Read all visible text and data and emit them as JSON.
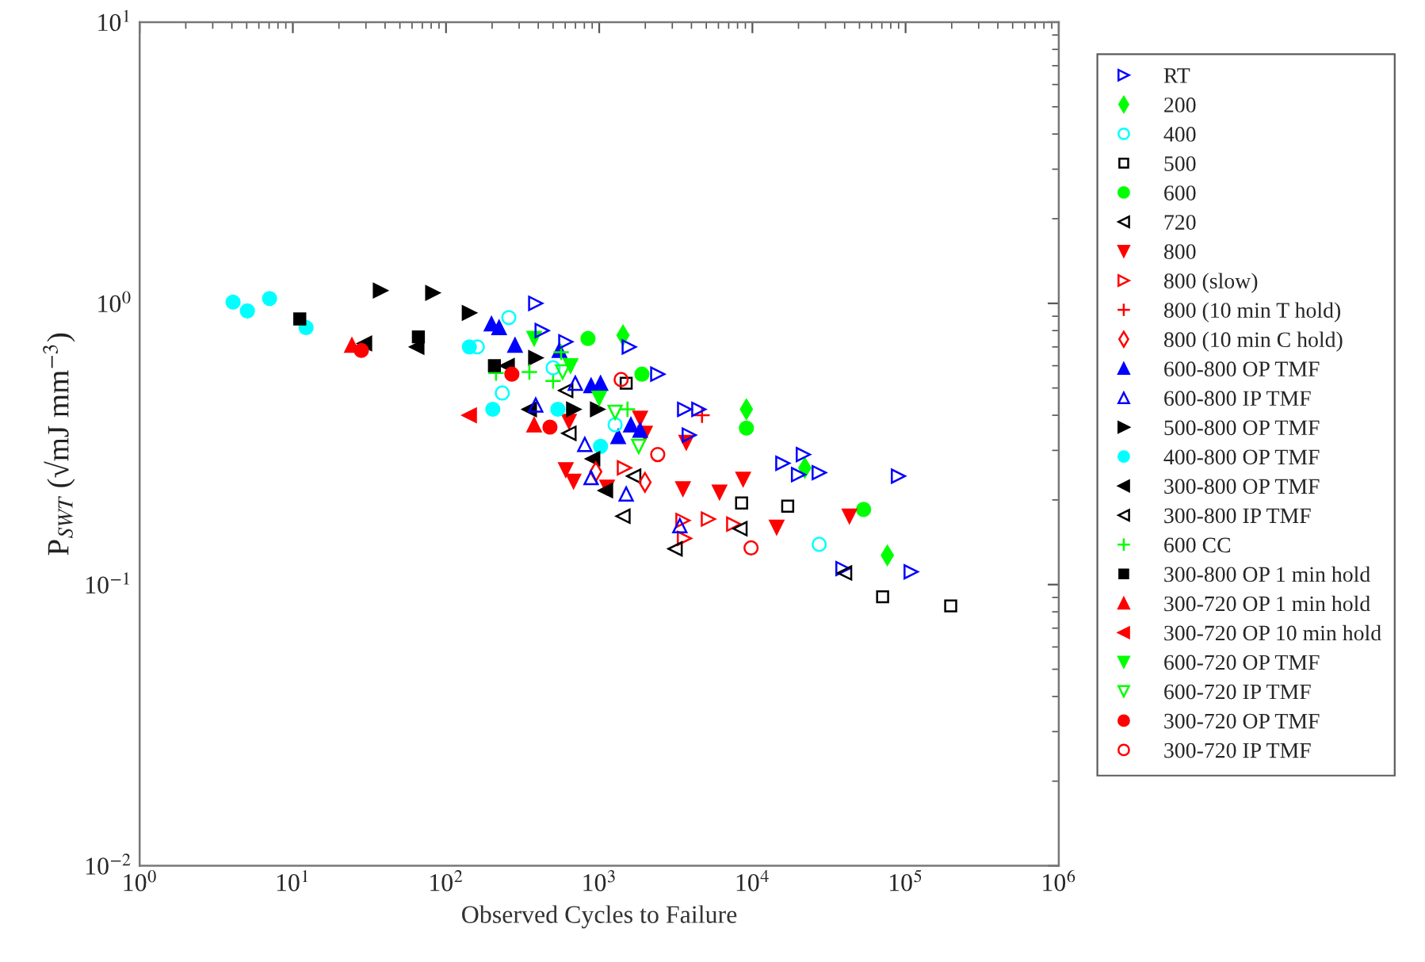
{
  "chart_data": {
    "type": "scatter",
    "xlabel": "Observed Cycles to Failure",
    "ylabel": "P$_{SWT}$ (√mJ mm$^{−3}$)",
    "log": "xy",
    "grid": false,
    "legend": "right",
    "xlim": [
      1,
      1000000
    ],
    "ylim": [
      0.01,
      10
    ],
    "xticks": [
      {
        "value": 1,
        "label": "10$^{0}$"
      },
      {
        "value": 10,
        "label": "10$^{1}$"
      },
      {
        "value": 100,
        "label": "10$^{2}$"
      },
      {
        "value": 1000,
        "label": "10$^{3}$"
      },
      {
        "value": 10000,
        "label": "10$^{4}$"
      },
      {
        "value": 100000,
        "label": "10$^{5}$"
      },
      {
        "value": 1000000,
        "label": "10$^{6}$"
      }
    ],
    "yticks": [
      {
        "value": 0.01,
        "label": "10$^{−2}$"
      },
      {
        "value": 0.1,
        "label": "10$^{−1}$"
      },
      {
        "value": 1,
        "label": "10$^{0}$"
      },
      {
        "value": 10,
        "label": "10$^{1}$"
      }
    ],
    "series": [
      {
        "name": "RT",
        "color": "#0000ff",
        "marker": "triangle-right-open",
        "x": [
          385,
          424,
          605,
          1570,
          2410,
          3610,
          4470,
          3870,
          15800,
          21500,
          20000,
          27300,
          89800,
          39000,
          108700
        ],
        "values": [
          1.0,
          0.8,
          0.73,
          0.7,
          0.56,
          0.42,
          0.42,
          0.34,
          0.27,
          0.29,
          0.246,
          0.25,
          0.243,
          0.114,
          0.111
        ]
      },
      {
        "name": "200",
        "color": "#00ff00",
        "marker": "diamond",
        "x": [
          1430,
          9140,
          22000,
          76000
        ],
        "values": [
          0.77,
          0.42,
          0.26,
          0.127
        ]
      },
      {
        "name": "400",
        "color": "#00ffff",
        "marker": "circle-open",
        "x": [
          257,
          160,
          233,
          500,
          1270,
          27300
        ],
        "values": [
          0.89,
          0.7,
          0.48,
          0.59,
          0.37,
          0.139
        ]
      },
      {
        "name": "500",
        "color": "#000000",
        "marker": "square-open",
        "x": [
          1500,
          8500,
          17000,
          70800,
          197000
        ],
        "values": [
          0.52,
          0.195,
          0.19,
          0.0905,
          0.084
        ]
      },
      {
        "name": "600",
        "color": "#00ff00",
        "marker": "circle",
        "x": [
          845,
          1900,
          9140,
          53200
        ],
        "values": [
          0.75,
          0.56,
          0.36,
          0.185
        ]
      },
      {
        "name": "720",
        "color": "#000000",
        "marker": "triangle-left-open",
        "x": [
          605,
          635,
          1680,
          1430,
          40000
        ],
        "values": [
          0.49,
          0.345,
          0.243,
          0.175,
          0.11
        ]
      },
      {
        "name": "800",
        "color": "#ff0000",
        "marker": "triangle-down",
        "x": [
          1850,
          3700,
          635,
          1990,
          605,
          680,
          1125,
          3520,
          6100,
          8700,
          14400,
          43000
        ],
        "values": [
          0.39,
          0.32,
          0.38,
          0.345,
          0.256,
          0.233,
          0.222,
          0.219,
          0.213,
          0.237,
          0.16,
          0.175
        ]
      },
      {
        "name": "800 (slow)",
        "color": "#ff0000",
        "marker": "triangle-right-open",
        "x": [
          1460,
          3520,
          5160,
          7550,
          3600
        ],
        "values": [
          0.26,
          0.169,
          0.171,
          0.164,
          0.146
        ]
      },
      {
        "name": "800 (10 min T hold)",
        "color": "#ff0000",
        "marker": "plus",
        "x": [
          4690
        ],
        "values": [
          0.4
        ]
      },
      {
        "name": "800 (10 min C hold)",
        "color": "#ff0000",
        "marker": "diamond-open",
        "x": [
          950,
          1990
        ],
        "values": [
          0.252,
          0.231
        ]
      },
      {
        "name": "600-800 OP TMF",
        "color": "#0000ff",
        "marker": "triangle",
        "x": [
          198,
          222,
          282,
          550,
          885,
          1020,
          1610,
          1850,
          1330
        ],
        "values": [
          0.845,
          0.82,
          0.71,
          0.68,
          0.51,
          0.52,
          0.37,
          0.354,
          0.336
        ]
      },
      {
        "name": "600-800 IP TMF",
        "color": "#0000ff",
        "marker": "triangle-open",
        "x": [
          698,
          385,
          805,
          885,
          1500,
          3360
        ],
        "values": [
          0.52,
          0.435,
          0.315,
          0.24,
          0.21,
          0.162
        ]
      },
      {
        "name": "500-800 OP TMF",
        "color": "#000000",
        "marker": "triangle-right",
        "x": [
          37.3,
          81.9,
          142,
          385,
          681,
          975
        ],
        "values": [
          1.11,
          1.09,
          0.925,
          0.64,
          0.42,
          0.42
        ]
      },
      {
        "name": "400-800 OP TMF",
        "color": "#00ffff",
        "marker": "circle",
        "x": [
          4.07,
          5.05,
          7.05,
          12.2,
          142,
          202,
          537,
          1020
        ],
        "values": [
          1.01,
          0.94,
          1.04,
          0.82,
          0.7,
          0.42,
          0.42,
          0.31
        ]
      },
      {
        "name": "300-800 OP TMF",
        "color": "#000000",
        "marker": "triangle-left",
        "x": [
          29.4,
          64.5,
          251,
          350,
          907,
          1100
        ],
        "values": [
          0.72,
          0.7,
          0.6,
          0.42,
          0.28,
          0.216
        ]
      },
      {
        "name": "300-800 IP TMF",
        "color": "#000000",
        "marker": "triangle-left-open",
        "x": [
          3130,
          8300
        ],
        "values": [
          0.134,
          0.158
        ]
      },
      {
        "name": "600 CC",
        "color": "#00ff00",
        "marker": "plus",
        "x": [
          212,
          350,
          500,
          564,
          1530
        ],
        "values": [
          0.565,
          0.57,
          0.53,
          0.67,
          0.42
        ]
      },
      {
        "name": "300-800 OP 1 min hold",
        "color": "#000000",
        "marker": "square",
        "x": [
          11.1,
          66,
          207
        ],
        "values": [
          0.88,
          0.76,
          0.6
        ]
      },
      {
        "name": "300-720 OP 1 min hold",
        "color": "#ff0000",
        "marker": "triangle",
        "x": [
          24.3,
          376
        ],
        "values": [
          0.71,
          0.37
        ]
      },
      {
        "name": "300-720 OP 10 min hold",
        "color": "#ff0000",
        "marker": "triangle-left",
        "x": [
          142
        ],
        "values": [
          0.4
        ]
      },
      {
        "name": "600-720 OP TMF",
        "color": "#00ff00",
        "marker": "triangle-down",
        "x": [
          376,
          650,
          1000
        ],
        "values": [
          0.75,
          0.6,
          0.46
        ]
      },
      {
        "name": "600-720 IP TMF",
        "color": "#00ff00",
        "marker": "triangle-down-open",
        "x": [
          577,
          1270,
          1810
        ],
        "values": [
          0.57,
          0.41,
          0.31
        ]
      },
      {
        "name": "300-720 OP TMF",
        "color": "#ff0000",
        "marker": "circle",
        "x": [
          28,
          269,
          477
        ],
        "values": [
          0.68,
          0.56,
          0.363
        ]
      },
      {
        "name": "300-720 IP TMF",
        "color": "#ff0000",
        "marker": "circle-open",
        "x": [
          1390,
          2410,
          9800
        ],
        "values": [
          0.536,
          0.29,
          0.135
        ]
      }
    ]
  }
}
